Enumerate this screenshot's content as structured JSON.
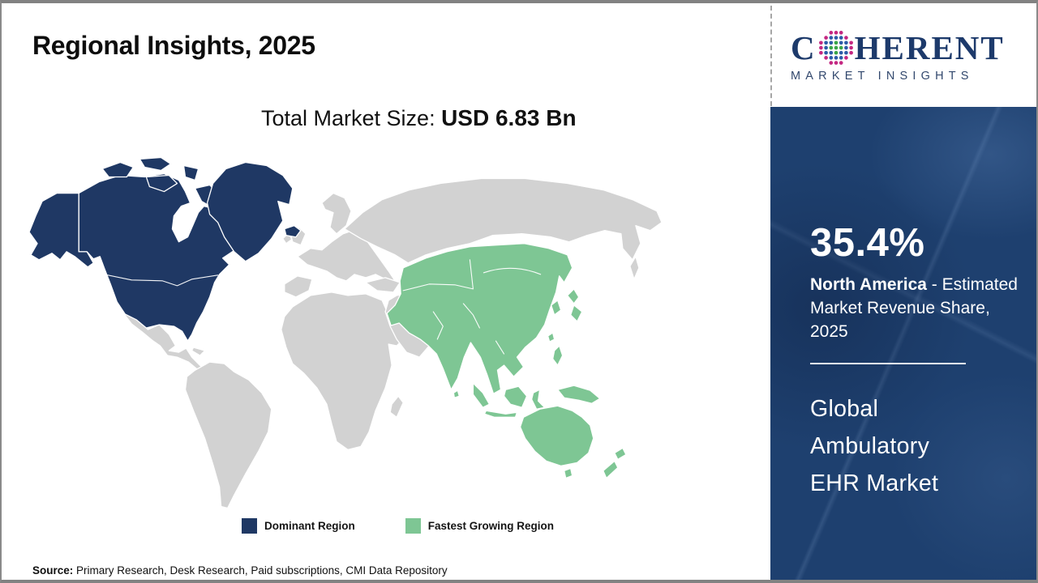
{
  "header": {
    "title": "Regional Insights, 2025",
    "market_size_label": "Total Market Size: ",
    "market_size_value": "USD 6.83 Bn"
  },
  "logo": {
    "name_prefix": "C",
    "name_suffix": "HERENT",
    "tagline": "MARKET INSIGHTS"
  },
  "map": {
    "type": "choropleth-world-map",
    "legend": [
      {
        "key": "dominant",
        "label": "Dominant Region",
        "color": "#1f3864"
      },
      {
        "key": "fastest_growing",
        "label": "Fastest Growing Region",
        "color": "#7ec694"
      }
    ],
    "colors": {
      "other_land": "#d2d2d2",
      "ocean": "#ffffff",
      "country_border": "#ffffff"
    },
    "dominant_region": "North America",
    "dominant_region_countries": [
      "United States",
      "Canada",
      "Greenland",
      "Iceland"
    ],
    "fastest_growing_region": "Asia Pacific",
    "fastest_growing_region_countries": [
      "China",
      "Mongolia",
      "Central Asia",
      "India",
      "Pakistan",
      "Southeast Asia",
      "South Korea",
      "Japan",
      "Philippines",
      "Indonesia",
      "Papua New Guinea",
      "Australia",
      "New Zealand"
    ]
  },
  "sidebar": {
    "panel_color": "#1e406f",
    "stat_value": "35.4%",
    "stat_region": "North America",
    "stat_suffix": " - Estimated Market Revenue Share, 2025",
    "market_lines": [
      "Global",
      "Ambulatory",
      "EHR Market"
    ]
  },
  "footer": {
    "source_label": "Source:",
    "source_text": " Primary Research, Desk Research, Paid subscriptions, CMI Data Repository"
  }
}
